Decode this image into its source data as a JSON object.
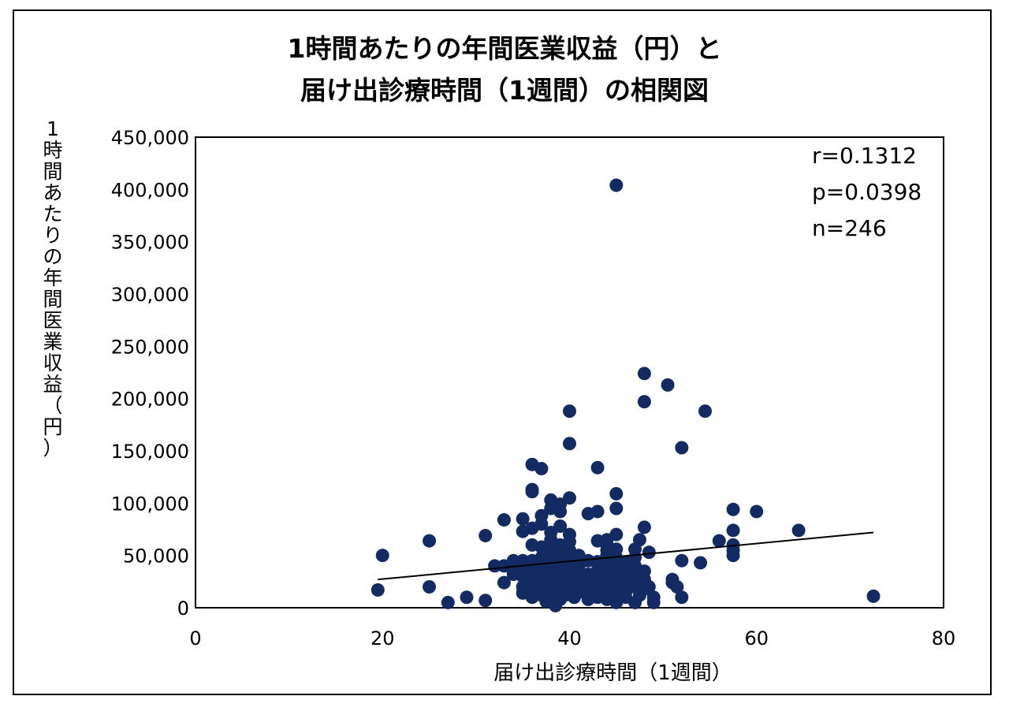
{
  "chart_data": {
    "type": "scatter",
    "title": [
      "1時間あたりの年間医業収益（円）と",
      "届け出診療時間（1週間）の相関図"
    ],
    "xlabel": "届け出診療時間（1週間）",
    "ylabel": "1時間あたりの年間医業収益（円）",
    "xlim": [
      0,
      80
    ],
    "ylim": [
      0,
      450000
    ],
    "xticks": [
      0,
      20,
      40,
      60,
      80
    ],
    "xtick_labels": [
      "0",
      "20",
      "40",
      "60",
      "80"
    ],
    "yticks": [
      0,
      50000,
      100000,
      150000,
      200000,
      250000,
      300000,
      350000,
      400000,
      450000
    ],
    "ytick_labels": [
      "0",
      "50,000",
      "100,000",
      "150,000",
      "200,000",
      "250,000",
      "300,000",
      "350,000",
      "400,000",
      "450,000"
    ],
    "grid": false,
    "marker_color": "#132A62",
    "trendline": {
      "x": [
        19.5,
        72.5
      ],
      "y": [
        27000,
        72000
      ]
    },
    "annotations": [
      "r=0.1312",
      "p=0.0398",
      "n=246"
    ],
    "points": [
      [
        19.5,
        17000
      ],
      [
        20,
        50000
      ],
      [
        25,
        64000
      ],
      [
        25,
        20000
      ],
      [
        27,
        5000
      ],
      [
        29,
        10000
      ],
      [
        31,
        7000
      ],
      [
        31,
        69000
      ],
      [
        32,
        40000
      ],
      [
        33,
        84000
      ],
      [
        33,
        24000
      ],
      [
        33,
        40000
      ],
      [
        34,
        45000
      ],
      [
        34,
        34000
      ],
      [
        34,
        32000
      ],
      [
        35,
        20000
      ],
      [
        35,
        14000
      ],
      [
        35,
        30000
      ],
      [
        35,
        40000
      ],
      [
        35,
        45000
      ],
      [
        35,
        85000
      ],
      [
        35,
        73000
      ],
      [
        36,
        10000
      ],
      [
        36,
        15000
      ],
      [
        36,
        20000
      ],
      [
        36,
        25000
      ],
      [
        36,
        35000
      ],
      [
        36,
        45000
      ],
      [
        36,
        60000
      ],
      [
        36,
        76000
      ],
      [
        36,
        111000
      ],
      [
        36,
        113000
      ],
      [
        36,
        137000
      ],
      [
        37,
        12000
      ],
      [
        37,
        18000
      ],
      [
        37,
        28000
      ],
      [
        37,
        38000
      ],
      [
        37,
        48000
      ],
      [
        37,
        58000
      ],
      [
        37,
        88000
      ],
      [
        37,
        133000
      ],
      [
        37,
        80000
      ],
      [
        37.5,
        6000
      ],
      [
        38,
        10000
      ],
      [
        38,
        15000
      ],
      [
        38,
        20000
      ],
      [
        38,
        25000
      ],
      [
        38,
        30000
      ],
      [
        38,
        35000
      ],
      [
        38,
        40000
      ],
      [
        38,
        45000
      ],
      [
        38,
        50000
      ],
      [
        38,
        55000
      ],
      [
        38,
        60000
      ],
      [
        38,
        65000
      ],
      [
        38,
        72000
      ],
      [
        38,
        95000
      ],
      [
        38,
        103000
      ],
      [
        38.5,
        2000
      ],
      [
        39,
        8000
      ],
      [
        39,
        14000
      ],
      [
        39,
        22000
      ],
      [
        39,
        28000
      ],
      [
        39,
        36000
      ],
      [
        39,
        44000
      ],
      [
        39,
        52000
      ],
      [
        39,
        60000
      ],
      [
        39,
        78000
      ],
      [
        39,
        99000
      ],
      [
        39,
        92000
      ],
      [
        39.5,
        12000
      ],
      [
        40,
        18000
      ],
      [
        40,
        25000
      ],
      [
        40,
        32000
      ],
      [
        40,
        40000
      ],
      [
        40,
        47000
      ],
      [
        40,
        55000
      ],
      [
        40,
        63000
      ],
      [
        40,
        70000
      ],
      [
        40,
        105000
      ],
      [
        40,
        157000
      ],
      [
        40,
        188000
      ],
      [
        40.5,
        10000
      ],
      [
        41,
        20000
      ],
      [
        41,
        30000
      ],
      [
        41,
        40000
      ],
      [
        41,
        50000
      ],
      [
        41,
        15000
      ],
      [
        41,
        35000
      ],
      [
        42,
        8000
      ],
      [
        42,
        16000
      ],
      [
        42,
        24000
      ],
      [
        42,
        32000
      ],
      [
        42,
        45000
      ],
      [
        42,
        90000
      ],
      [
        42,
        25000
      ],
      [
        42.5,
        12000
      ],
      [
        43,
        14000
      ],
      [
        43,
        20000
      ],
      [
        43,
        28000
      ],
      [
        43,
        36000
      ],
      [
        43,
        44000
      ],
      [
        43,
        64000
      ],
      [
        43,
        92000
      ],
      [
        43,
        134000
      ],
      [
        43,
        10000
      ],
      [
        43.5,
        22000
      ],
      [
        44,
        8000
      ],
      [
        44,
        15000
      ],
      [
        44,
        25000
      ],
      [
        44,
        35000
      ],
      [
        44,
        45000
      ],
      [
        44,
        50000
      ],
      [
        44,
        55000
      ],
      [
        44,
        60000
      ],
      [
        44,
        65000
      ],
      [
        44,
        30000
      ],
      [
        44,
        20000
      ],
      [
        44.5,
        38000
      ],
      [
        45,
        5000
      ],
      [
        45,
        12000
      ],
      [
        45,
        18000
      ],
      [
        45,
        28000
      ],
      [
        45,
        40000
      ],
      [
        45,
        48000
      ],
      [
        45,
        56000
      ],
      [
        45,
        70000
      ],
      [
        45,
        95000
      ],
      [
        45,
        109000
      ],
      [
        45,
        404000
      ],
      [
        45.5,
        30000
      ],
      [
        46,
        10000
      ],
      [
        46,
        22000
      ],
      [
        46,
        34000
      ],
      [
        46,
        44000
      ],
      [
        46,
        25000
      ],
      [
        46,
        15000
      ],
      [
        47,
        5000
      ],
      [
        47,
        20000
      ],
      [
        47,
        30000
      ],
      [
        47,
        40000
      ],
      [
        47,
        48000
      ],
      [
        47,
        56000
      ],
      [
        47.5,
        65000
      ],
      [
        47.5,
        12000
      ],
      [
        48,
        27000
      ],
      [
        48,
        35000
      ],
      [
        48,
        18000
      ],
      [
        48,
        77000
      ],
      [
        48,
        197000
      ],
      [
        48,
        224000
      ],
      [
        48.5,
        53000
      ],
      [
        48.5,
        20000
      ],
      [
        49,
        10000
      ],
      [
        49,
        5000
      ],
      [
        50.5,
        213000
      ],
      [
        51,
        27000
      ],
      [
        51,
        24000
      ],
      [
        51.5,
        20000
      ],
      [
        52,
        45000
      ],
      [
        52,
        10000
      ],
      [
        52,
        153000
      ],
      [
        54,
        43000
      ],
      [
        54.5,
        188000
      ],
      [
        56,
        64000
      ],
      [
        57.5,
        94000
      ],
      [
        57.5,
        74000
      ],
      [
        57.5,
        60000
      ],
      [
        57.5,
        55000
      ],
      [
        57.5,
        50000
      ],
      [
        60,
        92000
      ],
      [
        64.5,
        74000
      ],
      [
        72.5,
        11000
      ]
    ]
  }
}
